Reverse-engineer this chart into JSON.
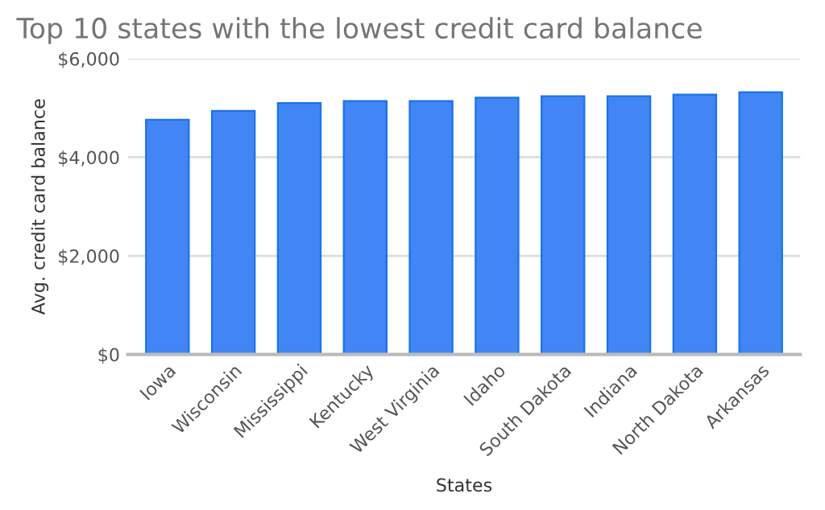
{
  "chart_data": {
    "type": "bar",
    "title": "Top 10 states with the lowest credit card balance",
    "xlabel": "States",
    "ylabel": "Avg. credit card balance",
    "categories": [
      "Iowa",
      "Wisconsin",
      "Mississippi",
      "Kentucky",
      "West Virginia",
      "Idaho",
      "South Dakota",
      "Indiana",
      "North Dakota",
      "Arkansas"
    ],
    "values": [
      4760,
      4940,
      5100,
      5140,
      5140,
      5210,
      5240,
      5240,
      5270,
      5320
    ],
    "color": "#4285f4",
    "ylim": [
      0,
      6000
    ],
    "yticks": [
      {
        "value": 0,
        "label": "$0"
      },
      {
        "value": 2000,
        "label": "$2,000"
      },
      {
        "value": 4000,
        "label": "$4,000"
      },
      {
        "value": 6000,
        "label": "$6,000"
      }
    ],
    "grid": "y"
  }
}
